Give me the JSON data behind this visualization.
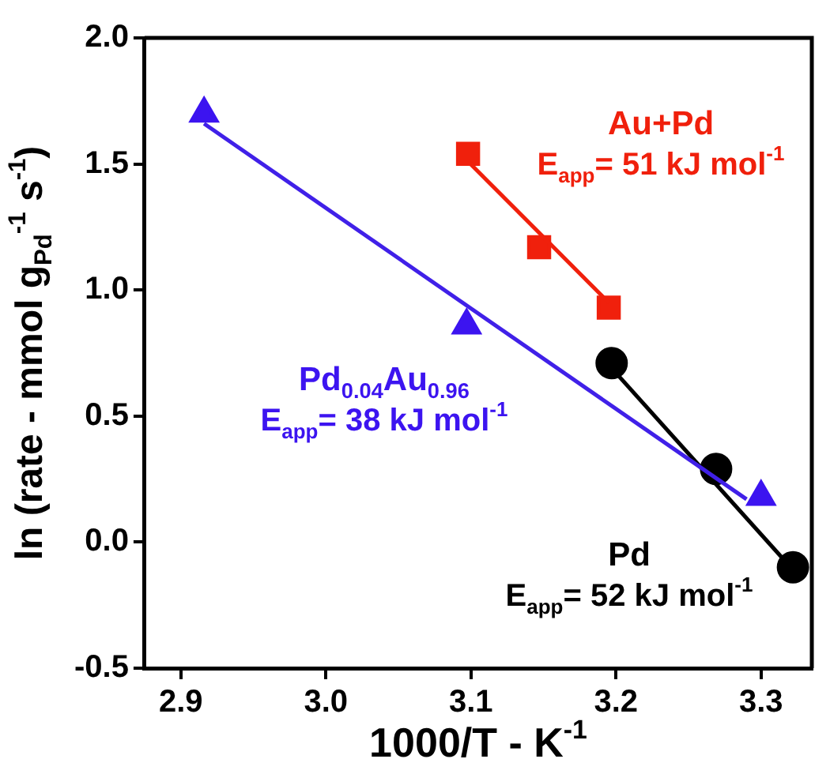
{
  "chart_data": {
    "type": "scatter",
    "xlabel": "1000/T - K$^{-1}$",
    "ylabel": "ln (rate - mmol g$_{Pd}$$^{-1}$ s$^{-1}$)",
    "xlim": [
      2.875,
      3.335
    ],
    "xticks": [
      2.9,
      {
        "value": 3,
        "label": "3.0"
      },
      3.1,
      3.2,
      3.3
    ],
    "ylim": [
      -0.5,
      2.0
    ],
    "yticks": [
      -0.5,
      {
        "value": 0,
        "label": "0.0"
      },
      0.5,
      {
        "value": 1,
        "label": "1.0"
      },
      1.5,
      {
        "value": 2,
        "label": "2.0"
      }
    ],
    "grid": false,
    "legend": false,
    "series": [
      {
        "type": "line",
        "marker": "none",
        "color": "#4020e8",
        "x": [
          2.916,
          3.29
        ],
        "values": [
          1.66,
          0.17
        ]
      },
      {
        "type": "line",
        "marker": "none",
        "color": "#f0200c",
        "x": [
          3.098,
          3.195
        ],
        "values": [
          1.51,
          0.95
        ]
      },
      {
        "type": "line",
        "marker": "none",
        "color": "#000000",
        "x": [
          3.197,
          3.322
        ],
        "values": [
          0.69,
          -0.11
        ]
      },
      {
        "marker": "triangle",
        "name": "Pd$_{0.04}$Au$_{0.96}$",
        "color": "#3c14f0",
        "x": [
          2.916,
          3.097,
          3.3
        ],
        "values": [
          1.7,
          0.86,
          0.18
        ]
      },
      {
        "marker": "square",
        "name": "Au+Pd",
        "color": "#f0200c",
        "x": [
          3.098,
          3.147,
          3.195
        ],
        "values": [
          1.54,
          1.17,
          0.93
        ]
      },
      {
        "marker": "circle",
        "name": "Pd",
        "color": "#000000",
        "x": [
          3.197,
          3.269,
          3.322
        ],
        "values": [
          0.71,
          0.29,
          -0.1
        ]
      }
    ],
    "annotations": [
      "E$_{app}$= 38 kJ mol$^{-1}$",
      "E$_{app}$= 51 kJ mol$^{-1}$",
      "E$_{app}$= 52 kJ mol$^{-1}$"
    ]
  }
}
